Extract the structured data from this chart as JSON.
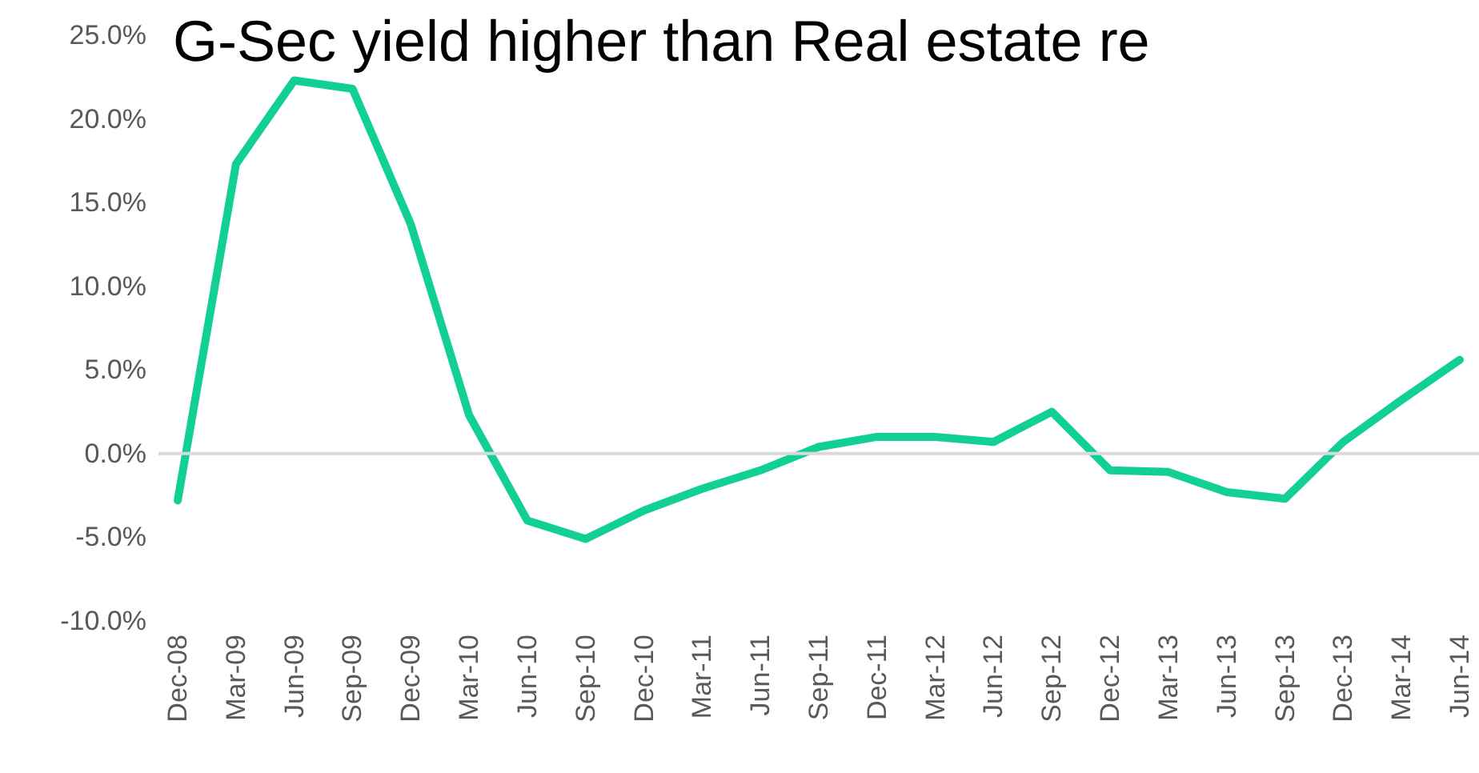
{
  "chart_data": {
    "type": "line",
    "title": "G-Sec yield higher than Real estate re",
    "categories": [
      "Dec-08",
      "Mar-09",
      "Jun-09",
      "Sep-09",
      "Dec-09",
      "Mar-10",
      "Jun-10",
      "Sep-10",
      "Dec-10",
      "Mar-11",
      "Jun-11",
      "Sep-11",
      "Dec-11",
      "Mar-12",
      "Jun-12",
      "Sep-12",
      "Dec-12",
      "Mar-13",
      "Jun-13",
      "Sep-13",
      "Dec-13",
      "Mar-14",
      "Jun-14"
    ],
    "series": [
      {
        "color": "#12cf96",
        "values": [
          -2.8,
          17.3,
          22.3,
          21.8,
          13.7,
          2.3,
          -4.0,
          -5.1,
          -3.4,
          -2.1,
          -1.0,
          0.4,
          1.0,
          1.0,
          0.7,
          2.5,
          -1.0,
          -1.1,
          -2.3,
          -2.7,
          0.7,
          3.2,
          5.6
        ]
      }
    ],
    "ylim": [
      -10,
      25
    ],
    "yticks": [
      {
        "value": -10,
        "label": "-10.0%"
      },
      {
        "value": -5,
        "label": "-5.0%"
      },
      {
        "value": 0,
        "label": "0.0%"
      },
      {
        "value": 5,
        "label": "5.0%"
      },
      {
        "value": 10,
        "label": "10.0%"
      },
      {
        "value": 15,
        "label": "15.0%"
      },
      {
        "value": 20,
        "label": "20.0%"
      },
      {
        "value": 25,
        "label": "25.0%"
      }
    ],
    "ref_lines": [
      {
        "axis": "y",
        "value": 0,
        "color": "#d9d9d9"
      }
    ],
    "legend": false,
    "marker": "none",
    "line_style": "solid"
  }
}
